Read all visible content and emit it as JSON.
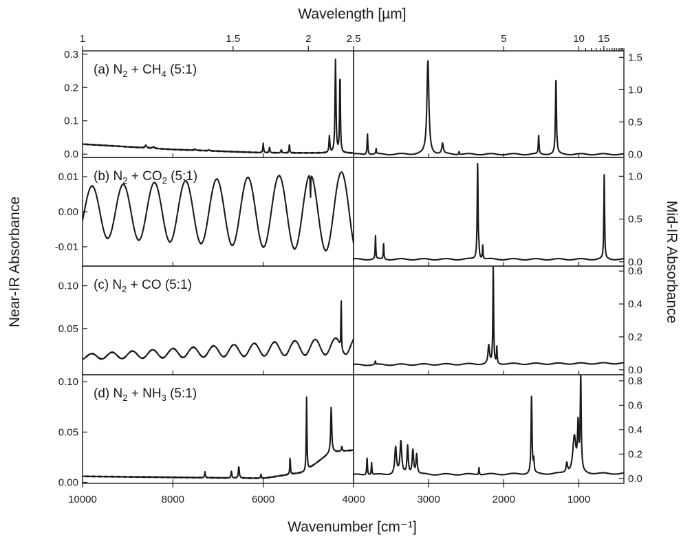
{
  "chart_data": {
    "type": "line",
    "title": "",
    "xlabel_bottom": "Wavenumber [cm⁻¹]",
    "xlabel_top": "Wavelength [µm]",
    "ylabel_left": "Near-IR Absorbance",
    "ylabel_right": "Mid-IR Absorbance",
    "grid": false,
    "colors": {
      "trace": "#1a1a1a"
    },
    "near_ir_x_range": [
      10000,
      4000
    ],
    "mid_ir_x_range": [
      4000,
      400
    ],
    "x_ticks_near": [
      "10000",
      "8000",
      "6000",
      "4000"
    ],
    "x_ticks_mid": [
      "3000",
      "2000",
      "1000"
    ],
    "x_ticks_top": [
      {
        "label": "1",
        "wavenumber": 10000
      },
      {
        "label": "1.5",
        "wavenumber": 6667
      },
      {
        "label": "2",
        "wavenumber": 5000
      },
      {
        "label": "2.5",
        "wavenumber": 4000
      },
      {
        "label": "5",
        "wavenumber": 2000
      },
      {
        "label": "10",
        "wavenumber": 1000
      },
      {
        "label": "15",
        "wavenumber": 667
      }
    ],
    "panels": [
      {
        "id": "a",
        "label": "(a) N",
        "sub1": "2",
        "mid": " + CH",
        "sub2": "4",
        "rest": " (5:1)",
        "near_ylim": [
          -0.01,
          0.31
        ],
        "near_yticks": [
          0.0,
          0.1,
          0.2,
          0.3
        ],
        "near_ytick_labels": [
          "0.0",
          "0.1",
          "0.2",
          "0.3"
        ],
        "mid_ylim": [
          -0.05,
          1.6
        ],
        "mid_yticks": [
          0.0,
          0.5,
          1.0,
          1.5
        ],
        "mid_ytick_labels": [
          "0.0",
          "0.5",
          "1.0",
          "1.5"
        ],
        "near_baseline": [
          [
            10000,
            0.03
          ],
          [
            8000,
            0.014
          ],
          [
            6000,
            0.004
          ],
          [
            4000,
            0.003
          ]
        ],
        "near_peaks": [
          [
            8600,
            0.008,
            20
          ],
          [
            8430,
            0.005,
            20
          ],
          [
            7510,
            0.004,
            15
          ],
          [
            7200,
            0.003,
            15
          ],
          [
            6000,
            0.028,
            10
          ],
          [
            5860,
            0.018,
            10
          ],
          [
            5600,
            0.01,
            10
          ],
          [
            5420,
            0.029,
            8
          ],
          [
            4535,
            0.05,
            12
          ],
          [
            4400,
            0.278,
            13
          ],
          [
            4300,
            0.25,
            10
          ]
        ],
        "mid_baseline": [
          [
            4000,
            0.0
          ],
          [
            400,
            0.0
          ]
        ],
        "mid_peaks": [
          [
            3815,
            0.33,
            6
          ],
          [
            3700,
            0.08,
            5
          ],
          [
            3010,
            1.44,
            16
          ],
          [
            2815,
            0.16,
            12
          ],
          [
            2595,
            0.05,
            5
          ],
          [
            1535,
            0.29,
            6
          ],
          [
            1305,
            1.15,
            8
          ]
        ]
      },
      {
        "id": "b",
        "label": "(b) N",
        "sub1": "2",
        "mid": " + CO",
        "sub2": "2",
        "rest": " (5:1)",
        "near_ylim": [
          -0.0155,
          0.0155
        ],
        "near_yticks": [
          -0.01,
          0.0,
          0.01
        ],
        "near_ytick_labels": [
          "-0.01",
          "0.00",
          "0.01"
        ],
        "near_fringe": {
          "center": 0,
          "amp_start": 0.0072,
          "amp_end": 0.0115,
          "period": 690,
          "peak_at": 9790
        },
        "near_peaks": [
          [
            4955,
            -0.009,
            5
          ]
        ],
        "mid_ylim": [
          -0.05,
          1.22
        ],
        "mid_yticks": [
          0.0,
          0.5,
          1.0
        ],
        "mid_ytick_labels": [
          "0.0",
          "0.5",
          "1.0"
        ],
        "mid_baseline": [
          [
            4000,
            0.03
          ],
          [
            400,
            0.03
          ]
        ],
        "mid_peaks": [
          [
            3708,
            0.27,
            5
          ],
          [
            3600,
            0.18,
            5
          ],
          [
            2348,
            1.12,
            7
          ],
          [
            2280,
            0.16,
            5
          ],
          [
            2330,
            0.08,
            4
          ],
          [
            662,
            0.98,
            6
          ]
        ]
      },
      {
        "id": "c",
        "label": "(c) N",
        "sub1": "2",
        "mid": " + CO (5:1)",
        "sub2": "",
        "rest": "",
        "near_ylim": [
          -0.004,
          0.123
        ],
        "near_yticks": [
          0.05,
          0.1
        ],
        "near_ytick_labels": [
          "0.05",
          "0.10"
        ],
        "near_fringe": {
          "center_start": 0.017,
          "center_end": 0.03,
          "amp_start": 0.003,
          "amp_end": 0.01,
          "period": 450,
          "peak_at": 9800
        },
        "near_peaks": [
          [
            4275,
            0.075,
            5
          ]
        ],
        "mid_ylim": [
          -0.03,
          0.63
        ],
        "mid_yticks": [
          0.0,
          0.2,
          0.4,
          0.6
        ],
        "mid_ytick_labels": [
          "0.0",
          "0.2",
          "0.4",
          "0.6"
        ],
        "mid_baseline": [
          [
            4000,
            0.03
          ],
          [
            400,
            0.04
          ]
        ],
        "mid_peaks": [
          [
            2140,
            0.58,
            6
          ],
          [
            2092,
            0.1,
            5
          ],
          [
            2200,
            0.11,
            12
          ],
          [
            3710,
            0.02,
            5
          ]
        ]
      },
      {
        "id": "d",
        "label": "(d) N",
        "sub1": "2",
        "mid": " + NH",
        "sub2": "3",
        "rest": " (5:1)",
        "near_ylim": [
          -0.001,
          0.107
        ],
        "near_yticks": [
          0.0,
          0.05,
          0.1
        ],
        "near_ytick_labels": [
          "0.00",
          "0.05",
          "0.10"
        ],
        "near_baseline": [
          [
            10000,
            0.006
          ],
          [
            6000,
            0.004
          ],
          [
            5100,
            0.01
          ],
          [
            4500,
            0.03
          ],
          [
            4000,
            0.032
          ]
        ],
        "near_peaks": [
          [
            7290,
            0.006,
            10
          ],
          [
            6705,
            0.007,
            10
          ],
          [
            6540,
            0.012,
            12
          ],
          [
            6050,
            0.004,
            10
          ],
          [
            5405,
            0.018,
            8
          ],
          [
            5040,
            0.073,
            9
          ],
          [
            4495,
            0.045,
            14
          ],
          [
            4260,
            0.005,
            10
          ]
        ],
        "mid_ylim": [
          -0.04,
          0.85
        ],
        "mid_yticks": [
          0.0,
          0.2,
          0.4,
          0.6,
          0.8
        ],
        "mid_ytick_labels": [
          "0.0",
          "0.2",
          "0.4",
          "0.6",
          "0.8"
        ],
        "mid_baseline": [
          [
            4000,
            0.03
          ],
          [
            400,
            0.04
          ]
        ],
        "mid_peaks": [
          [
            3820,
            0.14,
            6
          ],
          [
            3760,
            0.1,
            5
          ],
          [
            3440,
            0.22,
            14
          ],
          [
            3370,
            0.26,
            14
          ],
          [
            3280,
            0.23,
            10
          ],
          [
            3210,
            0.2,
            12
          ],
          [
            3160,
            0.16,
            10
          ],
          [
            2330,
            0.06,
            5
          ],
          [
            1630,
            0.63,
            8
          ],
          [
            1600,
            0.1,
            6
          ],
          [
            1160,
            0.08,
            12
          ],
          [
            1060,
            0.3,
            25
          ],
          [
            1010,
            0.36,
            10
          ],
          [
            975,
            0.76,
            8
          ]
        ]
      }
    ]
  }
}
